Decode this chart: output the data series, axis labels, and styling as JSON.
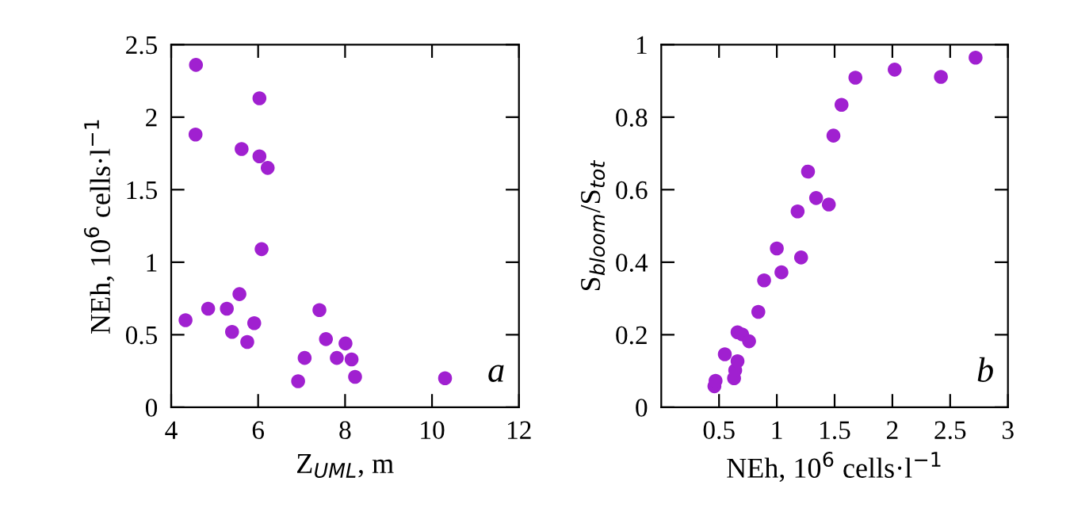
{
  "chart_data": [
    {
      "type": "scatter",
      "xlabel": "Z$_{UML}$, m",
      "ylabel": "NEh, 10$^{6}$ cells·l$^{−1}$",
      "annotations": [
        "a"
      ],
      "marker": "circle",
      "grid": false,
      "xlim": [
        4,
        12
      ],
      "ylim": [
        0,
        2.5
      ],
      "xticks": [
        4,
        6,
        8,
        10,
        12
      ],
      "yticks": [
        0,
        0.5,
        1,
        1.5,
        2,
        2.5
      ],
      "series": [
        {
          "color": "#a020d0",
          "x": [
            4.33,
            4.57,
            4.56,
            4.85,
            5.28,
            5.4,
            5.57,
            5.62,
            5.75,
            5.91,
            6.03,
            6.03,
            6.08,
            6.22,
            6.92,
            7.07,
            7.41,
            7.56,
            7.81,
            8.01,
            8.15,
            8.23,
            10.3
          ],
          "values": [
            0.6,
            2.36,
            1.88,
            0.68,
            0.68,
            0.52,
            0.78,
            1.78,
            0.45,
            0.58,
            2.13,
            1.73,
            1.09,
            1.65,
            0.18,
            0.34,
            0.67,
            0.47,
            0.34,
            0.44,
            0.33,
            0.21,
            0.2
          ]
        }
      ]
    },
    {
      "type": "scatter",
      "xlabel": "NEh, 10$^{6}$ cells·l$^{−1}$",
      "ylabel": "S$_{bloom}$/S$_{tot}$",
      "annotations": [
        "b"
      ],
      "marker": "circle",
      "grid": false,
      "xlim": [
        0,
        3
      ],
      "ylim": [
        0,
        1
      ],
      "xticks": [
        0.5,
        1,
        1.5,
        2,
        2.5,
        3
      ],
      "yticks": [
        0,
        0.2,
        0.4,
        0.6,
        0.8,
        1
      ],
      "series": [
        {
          "color": "#a020d0",
          "x": [
            0.46,
            0.47,
            0.55,
            0.63,
            0.64,
            0.66,
            0.66,
            0.7,
            0.76,
            0.84,
            0.89,
            1.0,
            1.04,
            1.18,
            1.21,
            1.27,
            1.34,
            1.45,
            1.49,
            1.56,
            1.68,
            2.02,
            2.42,
            2.72
          ],
          "values": [
            0.058,
            0.073,
            0.146,
            0.08,
            0.102,
            0.127,
            0.207,
            0.201,
            0.182,
            0.263,
            0.35,
            0.438,
            0.372,
            0.54,
            0.413,
            0.65,
            0.577,
            0.559,
            0.749,
            0.834,
            0.909,
            0.931,
            0.911,
            0.964
          ]
        }
      ]
    }
  ]
}
